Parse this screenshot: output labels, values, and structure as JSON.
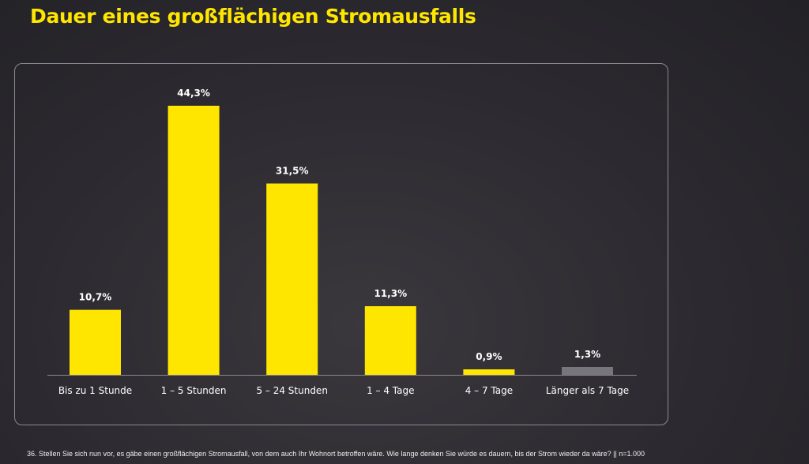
{
  "chart_data": {
    "type": "bar",
    "title": "Dauer eines großflächigen Stromausfalls",
    "categories": [
      "Bis zu 1 Stunde",
      "1 – 5 Stunden",
      "5 – 24 Stunden",
      "1 – 4 Tage",
      "4 – 7 Tage",
      "Länger als 7 Tage"
    ],
    "values": [
      10.7,
      44.3,
      31.5,
      11.3,
      0.9,
      1.3
    ],
    "data_labels": [
      "10,7%",
      "44,3%",
      "31,5%",
      "11,3%",
      "0,9%",
      "1,3%"
    ],
    "bar_colors": [
      "#ffe600",
      "#ffe600",
      "#ffe600",
      "#ffe600",
      "#ffe600",
      "#77767c"
    ],
    "xlabel": "",
    "ylabel": "",
    "ylim": [
      0,
      50
    ],
    "grid": false,
    "legend": "none"
  },
  "footnote": "36. Stellen Sie sich nun vor, es gäbe einen großflächigen Stromausfall, von dem auch Ihr Wohnort betroffen wäre. Wie lange denken Sie würde es dauern, bis der Strom wieder da wäre? || n=1.000"
}
